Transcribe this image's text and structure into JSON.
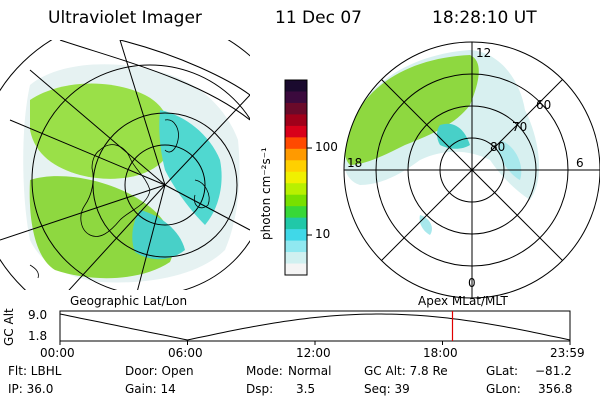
{
  "header": {
    "title": "Ultraviolet Imager",
    "date": "11 Dec 07",
    "time": "18:28:10 UT"
  },
  "colorbar": {
    "label": "photon cm⁻²s⁻¹",
    "ticks": [
      "100",
      "10"
    ],
    "colors": [
      "#1a0a2e",
      "#3b0a3d",
      "#6a0a2a",
      "#a0001a",
      "#d8001a",
      "#ff4a00",
      "#ff9a00",
      "#ffd000",
      "#f0f000",
      "#b8f000",
      "#78e000",
      "#38d838",
      "#20c8a8",
      "#40d8e8",
      "#90e8f0",
      "#d0f0f0",
      "#f4f4f4"
    ]
  },
  "polar_plot": {
    "mlt_labels": [
      "12",
      "18",
      "6",
      "0"
    ],
    "lat_labels": [
      "60",
      "70",
      "80"
    ]
  },
  "map_plot": {
    "caption": "Geographic Lat/Lon"
  },
  "mlt_plot": {
    "caption": "Apex MLat/MLT"
  },
  "timeline": {
    "ylabel": "GC Alt",
    "ymax": "9.0",
    "ymin": "1.8",
    "xticks": [
      "00:00",
      "06:00",
      "12:00",
      "18:00",
      "23:59"
    ],
    "marker_fraction": 0.7696
  },
  "footer": {
    "flt": "Flt: LBHL",
    "door": "Door: Open",
    "mode_label": "Mode:",
    "mode": "Normal",
    "gcalt": "GC Alt: 7.8 Re",
    "glat_label": "GLat:",
    "glat": "−81.2",
    "ip": "IP: 36.0",
    "gain": "Gain: 14",
    "dsp_label": "Dsp:",
    "dsp": "3.5",
    "seq": "Seq: 39",
    "glon_label": "GLon:",
    "glon": "356.8"
  }
}
